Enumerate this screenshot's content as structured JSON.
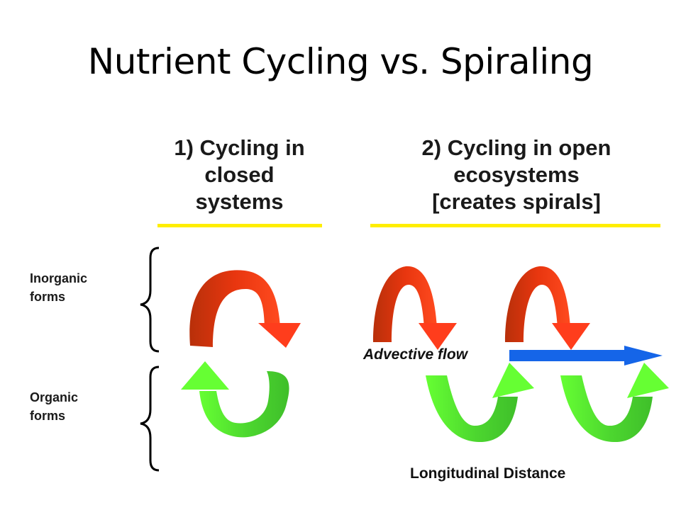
{
  "slide": {
    "title": "Nutrient Cycling vs. Spiraling"
  },
  "panels": {
    "closed": {
      "line1": "1) Cycling in",
      "line2": "closed",
      "line3": "systems"
    },
    "open": {
      "line1": "2) Cycling in open",
      "line2": "ecosystems",
      "line3": "[creates spirals]"
    }
  },
  "labels": {
    "inorganic_line1": "Inorganic",
    "inorganic_line2": "forms",
    "organic_line1": "Organic",
    "organic_line2": "forms",
    "advective_flow": "Advective flow",
    "longitudinal_distance": "Longitudinal Distance"
  },
  "colors": {
    "red_arrow_dark": "#c8340c",
    "red_arrow_light": "#ff3d1c",
    "green_arrow_dark": "#3fbf2a",
    "green_arrow_light": "#66ff33",
    "blue_arrow": "#1565e8",
    "underline": "#ffee00"
  }
}
